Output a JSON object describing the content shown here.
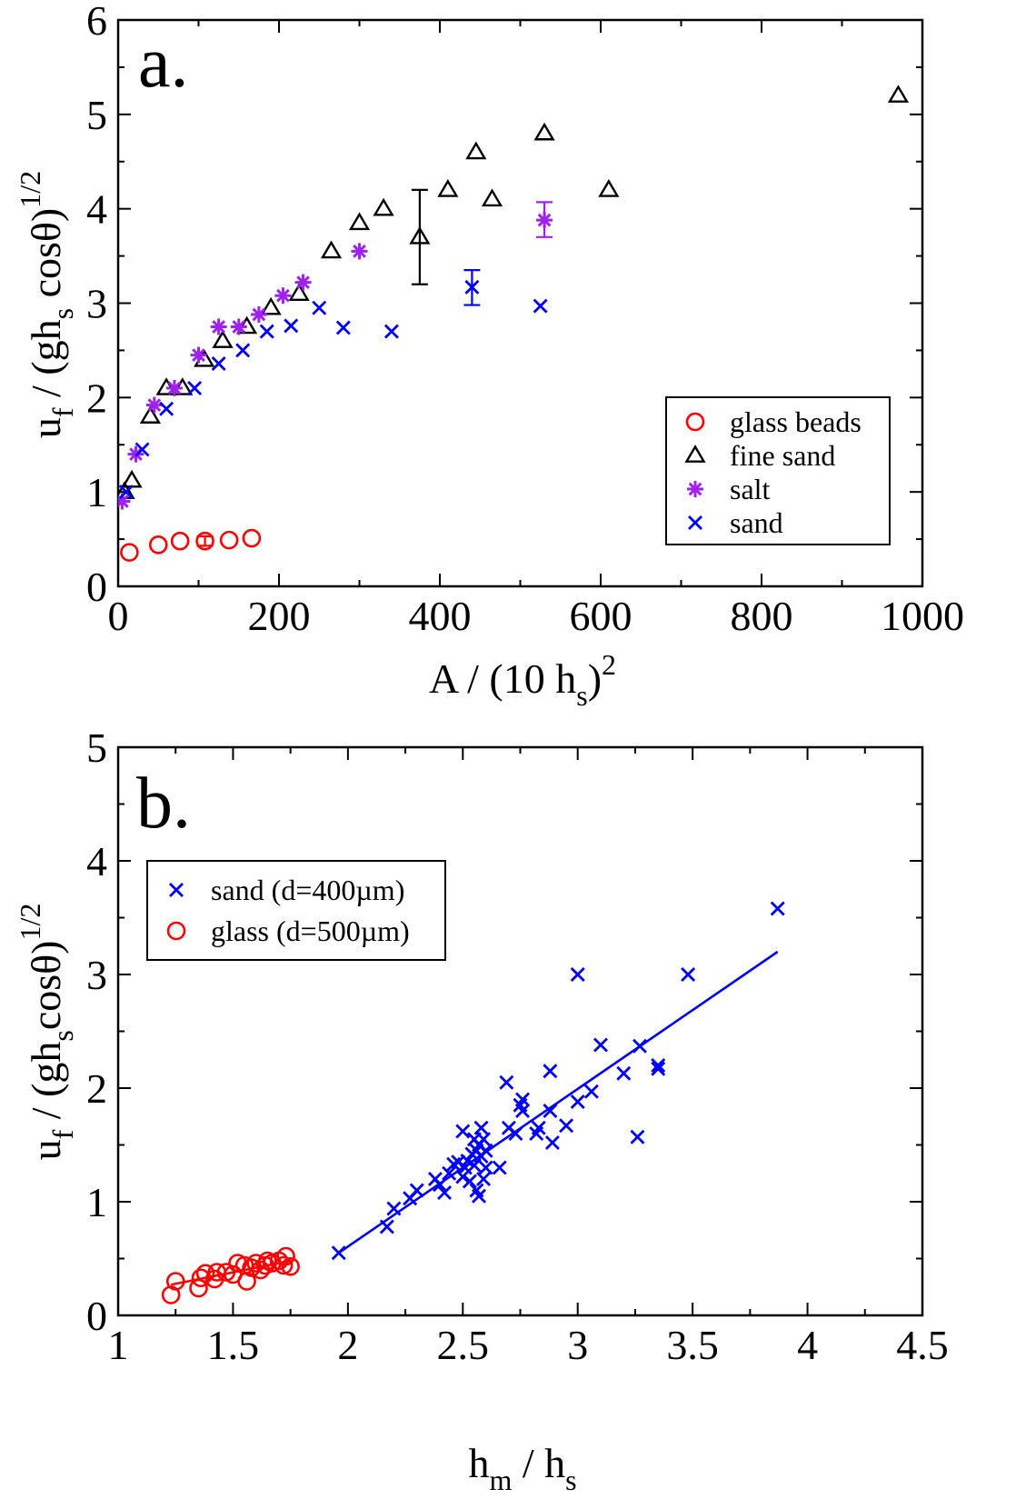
{
  "chart_data": [
    {
      "type": "scatter",
      "panel_label": "a.",
      "xlim": [
        0,
        1000
      ],
      "ylim": [
        0,
        6
      ],
      "xticks": [
        "0",
        "200",
        "400",
        "600",
        "800",
        "1000"
      ],
      "yticks": [
        "0",
        "1",
        "2",
        "3",
        "4",
        "5",
        "6"
      ],
      "xlabel": {
        "pre": "A / (10 h",
        "sub": "s",
        "post": ")",
        "sup": "2"
      },
      "ylabel": {
        "pre": "u",
        "sub1": "f",
        "mid": " / (gh",
        "sub2": "s",
        "post": " cosθ)",
        "sup": "1/2"
      },
      "legend": {
        "position": "lower-right"
      },
      "series": [
        {
          "name": "glass beads",
          "marker": "circle",
          "color": "#ff0000",
          "x": [
            14,
            50,
            77,
            108,
            138,
            166
          ],
          "y": [
            0.36,
            0.44,
            0.48,
            0.48,
            0.49,
            0.51
          ],
          "errorbars": [
            {
              "x": 108,
              "lo": 0.43,
              "hi": 0.53
            }
          ]
        },
        {
          "name": "fine sand",
          "marker": "triangle",
          "color": "#000000",
          "x": [
            8,
            17,
            40,
            60,
            80,
            107,
            130,
            160,
            190,
            225,
            265,
            300,
            330,
            375,
            410,
            445,
            465,
            530,
            610,
            970
          ],
          "y": [
            1.0,
            1.12,
            1.8,
            2.1,
            2.1,
            2.4,
            2.6,
            2.75,
            2.95,
            3.1,
            3.55,
            3.85,
            4.0,
            3.7,
            4.2,
            4.6,
            4.1,
            4.8,
            4.2,
            5.2
          ],
          "errorbars": [
            {
              "x": 375,
              "lo": 3.2,
              "hi": 4.2
            }
          ]
        },
        {
          "name": "salt",
          "marker": "asterisk",
          "color": "#a020f0",
          "x": [
            5,
            22,
            45,
            70,
            100,
            125,
            150,
            175,
            205,
            230,
            300,
            530
          ],
          "y": [
            0.9,
            1.4,
            1.92,
            2.1,
            2.45,
            2.75,
            2.75,
            2.88,
            3.08,
            3.22,
            3.55,
            3.88
          ],
          "errorbars": [
            {
              "x": 530,
              "lo": 3.7,
              "hi": 4.07
            }
          ]
        },
        {
          "name": "sand",
          "marker": "x",
          "color": "#0000ff",
          "x": [
            10,
            30,
            60,
            95,
            125,
            155,
            185,
            215,
            250,
            280,
            340,
            440,
            525
          ],
          "y": [
            1.0,
            1.45,
            1.88,
            2.1,
            2.36,
            2.5,
            2.7,
            2.76,
            2.95,
            2.74,
            2.7,
            3.17,
            2.97
          ],
          "errorbars": [
            {
              "x": 440,
              "lo": 2.98,
              "hi": 3.35
            }
          ]
        }
      ]
    },
    {
      "type": "scatter",
      "panel_label": "b.",
      "xlim": [
        1,
        4.5
      ],
      "ylim": [
        0,
        5
      ],
      "xticks": [
        "1",
        "1.5",
        "2",
        "2.5",
        "3",
        "3.5",
        "4",
        "4.5"
      ],
      "yticks": [
        "0",
        "1",
        "2",
        "3",
        "4",
        "5"
      ],
      "xlabel": {
        "pre": "h",
        "sub1": "m",
        "post": " / h",
        "sub2": "s"
      },
      "ylabel": {
        "pre": "u",
        "sub1": "f",
        "mid": " / (gh",
        "sub2": "s",
        "post": "cosθ)",
        "sup": "1/2"
      },
      "legend": {
        "position": "upper-left"
      },
      "series": [
        {
          "name": "sand (d=400µm)",
          "marker": "x",
          "color": "#0000ff",
          "x": [
            1.96,
            2.17,
            2.2,
            2.27,
            2.3,
            2.38,
            2.4,
            2.42,
            2.44,
            2.46,
            2.48,
            2.5,
            2.5,
            2.51,
            2.52,
            2.53,
            2.54,
            2.55,
            2.55,
            2.56,
            2.56,
            2.57,
            2.57,
            2.58,
            2.58,
            2.59,
            2.59,
            2.6,
            2.6,
            2.66,
            2.69,
            2.7,
            2.73,
            2.75,
            2.76,
            2.76,
            2.82,
            2.83,
            2.88,
            2.88,
            2.89,
            2.95,
            3.0,
            3.0,
            3.06,
            3.1,
            3.2,
            3.26,
            3.27,
            3.35,
            3.35,
            3.48,
            3.87
          ],
          "y": [
            0.55,
            0.78,
            0.94,
            1.03,
            1.1,
            1.2,
            1.15,
            1.08,
            1.25,
            1.33,
            1.35,
            1.62,
            1.22,
            1.3,
            1.36,
            1.18,
            1.42,
            1.32,
            1.55,
            1.45,
            1.1,
            1.05,
            1.5,
            1.65,
            1.4,
            1.55,
            1.2,
            1.45,
            1.3,
            1.3,
            2.05,
            1.65,
            1.6,
            1.85,
            1.9,
            1.8,
            1.6,
            1.65,
            2.15,
            1.8,
            1.52,
            1.67,
            3.0,
            1.88,
            1.97,
            2.38,
            2.13,
            1.57,
            2.37,
            2.17,
            2.2,
            3.0,
            3.58
          ]
        },
        {
          "name": "glass (d=500µm)",
          "marker": "circle",
          "color": "#ff0000",
          "x": [
            1.23,
            1.25,
            1.35,
            1.36,
            1.38,
            1.42,
            1.43,
            1.47,
            1.5,
            1.52,
            1.55,
            1.56,
            1.58,
            1.6,
            1.62,
            1.64,
            1.65,
            1.67,
            1.7,
            1.72,
            1.73,
            1.75
          ],
          "y": [
            0.18,
            0.3,
            0.24,
            0.33,
            0.37,
            0.32,
            0.38,
            0.38,
            0.36,
            0.46,
            0.44,
            0.3,
            0.42,
            0.46,
            0.4,
            0.44,
            0.48,
            0.46,
            0.48,
            0.44,
            0.52,
            0.43
          ]
        }
      ],
      "fit_lines": [
        {
          "color": "#0000ff",
          "x": [
            1.96,
            3.87
          ],
          "y": [
            0.55,
            3.2
          ]
        },
        {
          "color": "#ff0000",
          "x": [
            1.23,
            1.75
          ],
          "y": [
            0.27,
            0.48
          ]
        }
      ]
    }
  ]
}
